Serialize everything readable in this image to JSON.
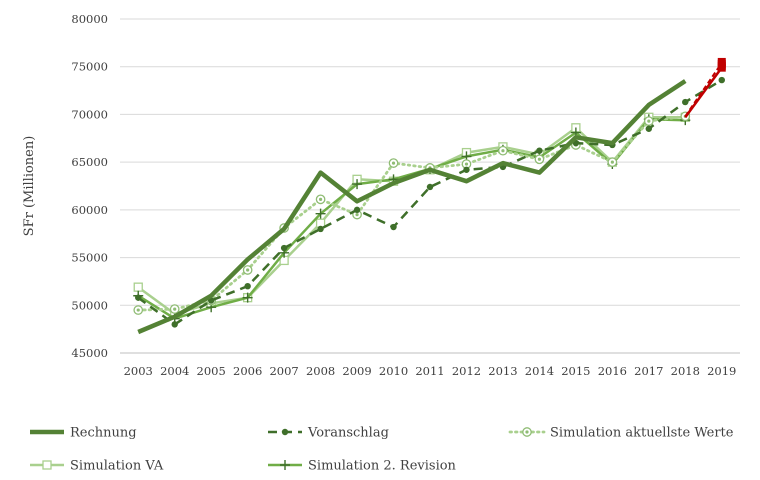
{
  "chart_data": {
    "type": "line",
    "title": "",
    "xlabel": "",
    "ylabel": "SFr (Millionen)",
    "x": [
      "2003",
      "2004",
      "2005",
      "2006",
      "2007",
      "2008",
      "2009",
      "2010",
      "2011",
      "2012",
      "2013",
      "2014",
      "2015",
      "2016",
      "2017",
      "2018",
      "2019"
    ],
    "ylim": [
      45000,
      80000
    ],
    "yticks": [
      45000,
      50000,
      55000,
      60000,
      65000,
      70000,
      75000,
      80000
    ],
    "grid": "horizontal",
    "legend_position": "bottom",
    "series": [
      {
        "name": "Rechnung",
        "color": "#548235",
        "style": "solid-thick",
        "values": [
          47200,
          48800,
          51000,
          54800,
          58000,
          63900,
          60900,
          62800,
          64200,
          63000,
          64900,
          63900,
          67600,
          67000,
          71000,
          73500,
          null
        ]
      },
      {
        "name": "Voranschlag",
        "color": "#3f6f2a",
        "style": "dashed-dot-marker",
        "values": [
          50800,
          48000,
          50500,
          52000,
          56000,
          58000,
          60000,
          58200,
          62400,
          64200,
          64500,
          66200,
          67000,
          66800,
          68500,
          71300,
          73600
        ]
      },
      {
        "name": "Simulation aktuellste Werte",
        "color": "#a9d08e",
        "style": "dotted-circle-marker",
        "values": [
          49500,
          49600,
          50500,
          53700,
          58100,
          61100,
          59500,
          64900,
          64400,
          64800,
          66200,
          65300,
          66800,
          65000,
          69300,
          69800,
          null
        ]
      },
      {
        "name": "Simulation VA",
        "color": "#a9d08e",
        "style": "solid-square-marker",
        "values": [
          51900,
          49100,
          50200,
          50800,
          54700,
          58600,
          63200,
          63000,
          64200,
          66000,
          66600,
          65800,
          68600,
          65000,
          69700,
          69700,
          null
        ]
      },
      {
        "name": "Simulation 2. Revision",
        "color": "#70ad47",
        "style": "solid-plus-marker",
        "values": [
          51000,
          48600,
          49800,
          50800,
          55500,
          59600,
          62700,
          63200,
          64300,
          65600,
          66300,
          65500,
          68100,
          64800,
          69500,
          69400,
          null
        ]
      }
    ],
    "forecast_segment": {
      "color": "#c00000",
      "points": [
        {
          "x": "2018",
          "y": 69700
        },
        {
          "x": "2019",
          "y": 74900
        },
        {
          "x": "2019",
          "y": 75500
        },
        {
          "x": "2019",
          "y": 75300
        },
        {
          "x": "2019",
          "y": 75100
        }
      ]
    }
  }
}
